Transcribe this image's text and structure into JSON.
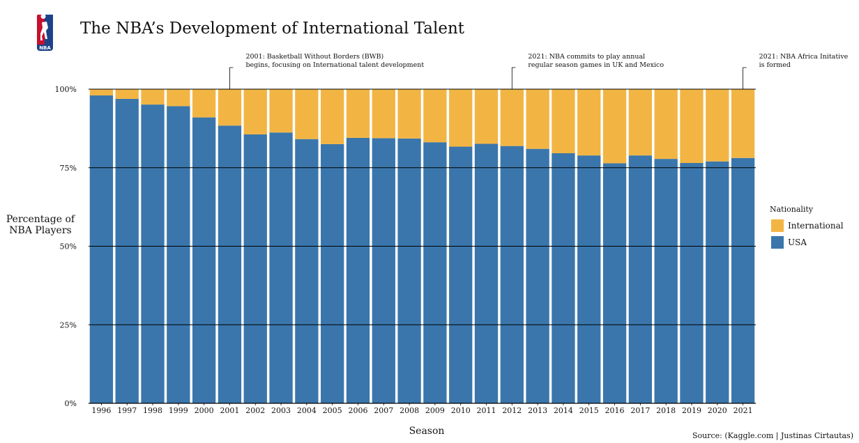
{
  "title": "The NBA’s Development of International Talent",
  "logo": {
    "text": "NBA",
    "colors": {
      "red": "#c8102e",
      "blue": "#1d428a"
    }
  },
  "source": "Source: (Kaggle.com | Justinas Cirtautas)",
  "colors": {
    "usa": "#3a76ab",
    "international": "#f2b544",
    "gridline": "#000000"
  },
  "chart_data": {
    "type": "bar",
    "stacked": true,
    "normalized": true,
    "xlabel": "Season",
    "ylabel": [
      "Percentage of",
      "NBA Players"
    ],
    "ylim": [
      0,
      100
    ],
    "yticks": [
      {
        "value": 0,
        "label": "0%"
      },
      {
        "value": 25,
        "label": "25%"
      },
      {
        "value": 50,
        "label": "50%"
      },
      {
        "value": 75,
        "label": "75%"
      },
      {
        "value": 100,
        "label": "100%"
      }
    ],
    "categories": [
      "1996",
      "1997",
      "1998",
      "1999",
      "2000",
      "2001",
      "2002",
      "2003",
      "2004",
      "2005",
      "2006",
      "2007",
      "2008",
      "2009",
      "2010",
      "2011",
      "2012",
      "2013",
      "2014",
      "2015",
      "2016",
      "2017",
      "2018",
      "2019",
      "2020",
      "2021"
    ],
    "series": [
      {
        "name": "USA",
        "values": [
          98.0,
          96.9,
          95.1,
          94.6,
          91.0,
          88.4,
          85.6,
          86.2,
          84.1,
          82.5,
          84.5,
          84.4,
          84.3,
          83.1,
          81.7,
          82.6,
          81.9,
          81.0,
          79.6,
          78.9,
          76.4,
          78.9,
          77.8,
          76.5,
          77.0,
          78.1
        ]
      },
      {
        "name": "International",
        "values": [
          2.0,
          3.1,
          4.9,
          5.4,
          9.0,
          11.6,
          14.4,
          13.8,
          15.9,
          17.5,
          15.5,
          15.6,
          15.7,
          16.9,
          18.3,
          17.4,
          18.1,
          19.0,
          20.4,
          21.1,
          23.6,
          21.1,
          22.2,
          23.5,
          23.0,
          21.9
        ]
      }
    ],
    "legend": {
      "title": "Nationality",
      "position": "right",
      "items": [
        {
          "label": "International",
          "color": "#f2b544"
        },
        {
          "label": "USA",
          "color": "#3a76ab"
        }
      ]
    },
    "annotations": [
      {
        "season": "2001",
        "lines": [
          "2001: Basketball Without Borders (BWB)",
          "begins, focusing on International talent development"
        ]
      },
      {
        "season": "2012",
        "lines": [
          "2021: NBA commits to play annual",
          "regular season games in UK and Mexico"
        ]
      },
      {
        "season": "2021",
        "lines": [
          "2021: NBA Africa Initative",
          "is formed"
        ]
      }
    ]
  }
}
